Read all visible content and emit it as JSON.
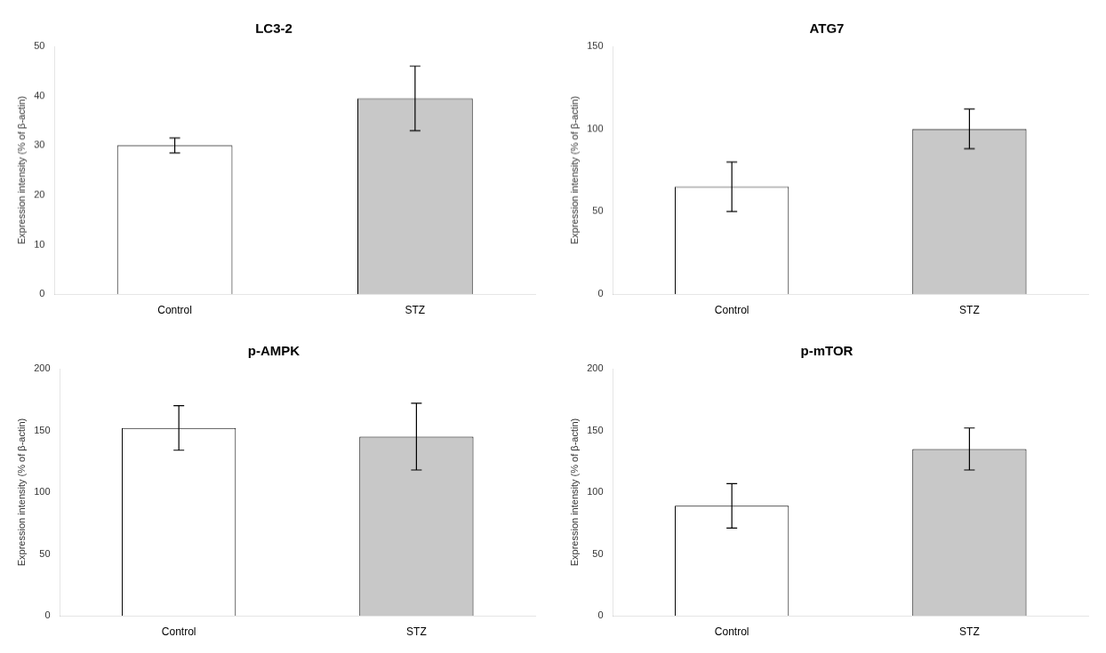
{
  "chart_data": [
    {
      "type": "bar",
      "title": "LC3-2",
      "categories": [
        "Control",
        "STZ"
      ],
      "values": [
        30,
        39.5
      ],
      "errors": [
        1.5,
        6.5
      ],
      "colors": [
        "#ffffff",
        "#c8c8c8"
      ],
      "ylabel": "Expression intensity (% of β-actin)",
      "ylim": [
        0,
        50
      ],
      "yticks": [
        0,
        10,
        20,
        30,
        40,
        50
      ],
      "grid": false
    },
    {
      "type": "bar",
      "title": "ATG7",
      "categories": [
        "Control",
        "STZ"
      ],
      "values": [
        65,
        100
      ],
      "errors": [
        15,
        12
      ],
      "colors": [
        "#ffffff",
        "#c8c8c8"
      ],
      "ylabel": "Expression intensity (% of β-actin)",
      "ylim": [
        0,
        150
      ],
      "yticks": [
        0,
        50,
        100,
        150
      ],
      "grid": false
    },
    {
      "type": "bar",
      "title": "p-AMPK",
      "categories": [
        "Control",
        "STZ"
      ],
      "values": [
        152,
        145
      ],
      "errors": [
        18,
        27
      ],
      "colors": [
        "#ffffff",
        "#c8c8c8"
      ],
      "ylabel": "Expression intensity (% of β-actin)",
      "ylim": [
        0,
        200
      ],
      "yticks": [
        0,
        50,
        100,
        150,
        200
      ],
      "grid": false
    },
    {
      "type": "bar",
      "title": "p-mTOR",
      "categories": [
        "Control",
        "STZ"
      ],
      "values": [
        89,
        135
      ],
      "errors": [
        18,
        17
      ],
      "colors": [
        "#ffffff",
        "#c8c8c8"
      ],
      "ylabel": "Expression intensity (% of β-actin)",
      "ylim": [
        0,
        200
      ],
      "yticks": [
        0,
        50,
        100,
        150,
        200
      ],
      "grid": false
    }
  ]
}
